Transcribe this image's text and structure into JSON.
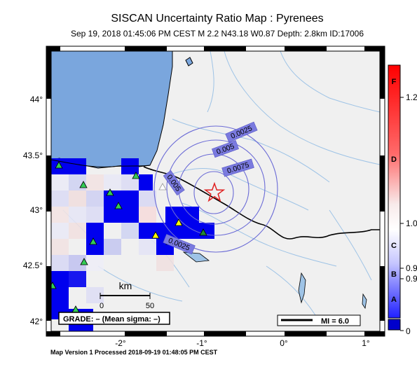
{
  "header": {
    "title": "SISCAN Uncertainty Ratio Map : Pyrenees",
    "subtitle": "Sep 19, 2018 01:45:06 PM CEST   M 2.2    N43.18 W0.87    Depth: 2.8km    ID:17006"
  },
  "footer": {
    "text": "Map Version 1 Processed 2018-09-19 01:48:05 PM CEST"
  },
  "map": {
    "lon_ticks": [
      "-2°",
      "-1°",
      "0°",
      "1°"
    ],
    "lat_ticks": [
      "44°",
      "43.5°",
      "43°",
      "42.5°",
      "42°"
    ],
    "contour_labels": [
      "0.0025",
      "0.005",
      "0.0075",
      "0.005",
      "0.0025"
    ],
    "epicenter": {
      "lat": 43.18,
      "lon": -0.87,
      "icon": "red-star"
    },
    "scale_bar": {
      "label": "km",
      "ticks": [
        "0",
        "50"
      ]
    },
    "grade_box": "GRADE: – (Mean sigma: –)",
    "mi_legend": "MI = 6.0",
    "colors": {
      "land": "#f0f0f0",
      "ocean": "#7aa6dd",
      "rivers": "#9ec3e6",
      "border": "#000000",
      "grid_blue": "#0000ee",
      "contours": "#6b6bd6",
      "epicenter": "#e02020",
      "stations": "#33cc55",
      "station_yellow": "#ffff00"
    }
  },
  "colorbar": {
    "grades": [
      "F",
      "D",
      "C",
      "B",
      "A"
    ],
    "values": [
      "1.2",
      "1.0",
      "0.9",
      "0.9",
      "0"
    ]
  }
}
